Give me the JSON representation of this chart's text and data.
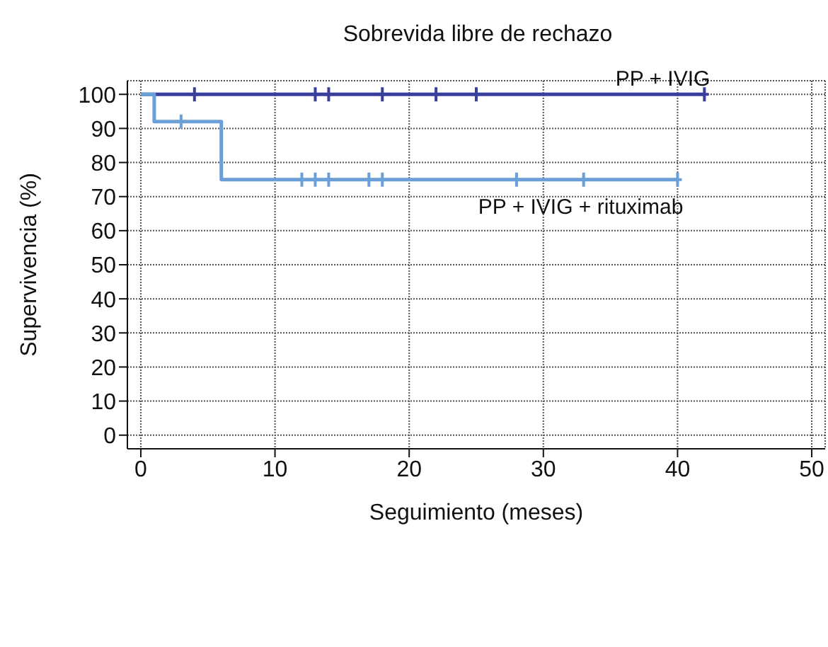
{
  "chart_data": {
    "type": "step",
    "title": "Sobrevida libre de rechazo",
    "xlabel": "Seguimiento (meses)",
    "ylabel": "Supervivencia (%)",
    "xlim": [
      -1,
      51
    ],
    "xticks": [
      0,
      10,
      20,
      30,
      40,
      50
    ],
    "ylim": [
      -4,
      104
    ],
    "yticks": [
      0,
      10,
      20,
      30,
      40,
      50,
      60,
      70,
      80,
      90,
      100
    ],
    "grid": true,
    "legend": false,
    "series": [
      {
        "name": "PP + IVIG",
        "color": "#3b3f9c",
        "x": [
          0,
          42
        ],
        "values": [
          100,
          100
        ]
      },
      {
        "name": "PP + IVIG + rituximab",
        "color": "#6a9fd8",
        "x": [
          0,
          1,
          6,
          40
        ],
        "values": [
          100,
          92,
          75,
          75
        ]
      },
      {
        "type": "scatter",
        "marker": "cross",
        "color": "#3b3f9c",
        "x": [
          4,
          13,
          14,
          18,
          22,
          25,
          42
        ],
        "values": [
          100,
          100,
          100,
          100,
          100,
          100,
          100
        ]
      },
      {
        "type": "scatter",
        "marker": "cross",
        "color": "#6a9fd8",
        "x": [
          3,
          12,
          13,
          14,
          17,
          18,
          28,
          33,
          40
        ],
        "values": [
          92,
          75,
          75,
          75,
          75,
          75,
          75,
          75,
          75
        ]
      }
    ]
  }
}
